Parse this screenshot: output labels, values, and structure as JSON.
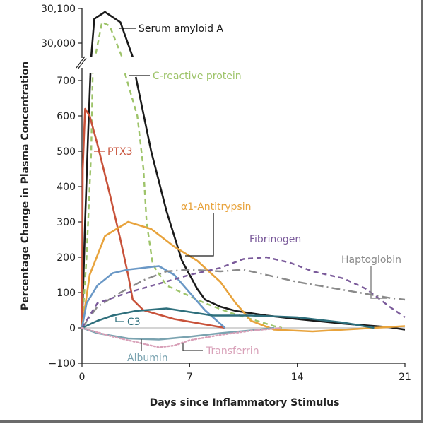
{
  "chart_data": {
    "type": "line",
    "title": "",
    "xlabel": "Days since Inflammatory Stimulus",
    "ylabel": "Percentage Change in Plasma Concentration",
    "xlim": [
      0,
      21
    ],
    "ylim_lower": [
      -100,
      700
    ],
    "ylim_upper": [
      30000,
      30100
    ],
    "axis_break": true,
    "x_ticks": [
      "0",
      "7",
      "14",
      "21"
    ],
    "x_tick_values": [
      0,
      7,
      14,
      21
    ],
    "y_ticks_lower": [
      "700",
      "600",
      "500",
      "400",
      "300",
      "200",
      "100",
      "0",
      "−100"
    ],
    "y_tick_values_lower": [
      700,
      600,
      500,
      400,
      300,
      200,
      100,
      0,
      -100
    ],
    "y_ticks_upper": [
      "30,100",
      "30,000"
    ],
    "y_tick_values_upper": [
      30100,
      30000
    ],
    "grid": false,
    "series": [
      {
        "name": "Serum amyloid A",
        "color": "#1a1a1a",
        "style": "solid",
        "x": [
          0,
          0.2,
          0.4,
          0.55,
          0.6,
          0.8,
          1.5,
          2.5,
          3.3,
          3.5,
          4.5,
          5.5,
          6.5,
          7.5,
          8,
          9,
          10,
          12,
          14,
          17,
          20,
          21
        ],
        "y": [
          0,
          300,
          550,
          720,
          29960,
          30070,
          30090,
          30060,
          29960,
          710,
          500,
          330,
          190,
          110,
          80,
          60,
          48,
          35,
          25,
          12,
          2,
          -5
        ]
      },
      {
        "name": "C-reactive protein",
        "color": "#9ec46a",
        "style": "dashed",
        "x": [
          0,
          0.3,
          0.6,
          0.7,
          0.9,
          1.3,
          1.8,
          2.6,
          2.8,
          3.6,
          4,
          4.2,
          4.6,
          5.5,
          7,
          8,
          9.5,
          11,
          12.5,
          13
        ],
        "y": [
          0,
          200,
          500,
          720,
          29970,
          30060,
          30050,
          29960,
          720,
          600,
          450,
          300,
          180,
          120,
          90,
          70,
          45,
          25,
          5,
          0
        ]
      },
      {
        "name": "PTX3",
        "color": "#c8523a",
        "style": "solid",
        "x": [
          0,
          0.05,
          0.2,
          0.5,
          1,
          1.8,
          2.5,
          3,
          3.3,
          4,
          6,
          9.3
        ],
        "y": [
          0,
          450,
          620,
          600,
          520,
          380,
          250,
          150,
          80,
          50,
          25,
          0
        ]
      },
      {
        "name": "α1-Antitrypsin",
        "color": "#e8a33c",
        "style": "solid",
        "x": [
          0,
          0.5,
          1.5,
          3,
          4.5,
          6,
          7.5,
          9,
          10,
          11,
          12.5,
          15,
          19,
          21
        ],
        "y": [
          0,
          150,
          260,
          300,
          280,
          230,
          190,
          130,
          70,
          20,
          -5,
          -10,
          0,
          5
        ]
      },
      {
        "name": "",
        "color": "#6a98c6",
        "style": "solid",
        "x": [
          0,
          0.3,
          1,
          2,
          3,
          4,
          5,
          6,
          7,
          8,
          9.3
        ],
        "y": [
          0,
          70,
          120,
          155,
          165,
          170,
          175,
          150,
          100,
          50,
          0
        ]
      },
      {
        "name": "Haptoglobin",
        "color": "#8a8a8a",
        "style": "dashdot",
        "x": [
          0,
          1,
          2.5,
          4,
          5.5,
          7,
          9,
          10.5,
          12,
          14,
          16,
          18,
          20,
          21
        ],
        "y": [
          0,
          60,
          100,
          135,
          160,
          165,
          160,
          165,
          150,
          130,
          115,
          100,
          85,
          80
        ]
      },
      {
        "name": "Fibrinogen",
        "color": "#7a5a9a",
        "style": "dashed",
        "x": [
          0,
          1,
          3,
          5,
          7,
          9,
          10.5,
          12,
          13.5,
          15,
          17,
          18.5,
          20,
          21
        ],
        "y": [
          0,
          70,
          100,
          125,
          150,
          170,
          195,
          200,
          185,
          160,
          140,
          110,
          60,
          30
        ]
      },
      {
        "name": "C3",
        "color": "#2e6f7c",
        "style": "solid",
        "x": [
          0,
          1,
          2,
          3.5,
          5.5,
          7,
          8.5,
          11,
          14,
          17,
          19
        ],
        "y": [
          0,
          20,
          35,
          48,
          55,
          45,
          35,
          35,
          30,
          15,
          0
        ]
      },
      {
        "name": "Albumin",
        "color": "#7aa3b0",
        "style": "solid",
        "x": [
          0,
          1,
          3,
          5,
          7,
          9,
          11.5,
          12.5
        ],
        "y": [
          0,
          -15,
          -30,
          -33,
          -25,
          -15,
          -5,
          0
        ]
      },
      {
        "name": "Transferrin",
        "color": "#d8a0b8",
        "style": "dotted",
        "x": [
          0,
          2,
          4,
          5,
          6,
          7,
          9,
          11,
          13
        ],
        "y": [
          0,
          -25,
          -45,
          -55,
          -50,
          -35,
          -20,
          -8,
          0
        ]
      }
    ]
  }
}
